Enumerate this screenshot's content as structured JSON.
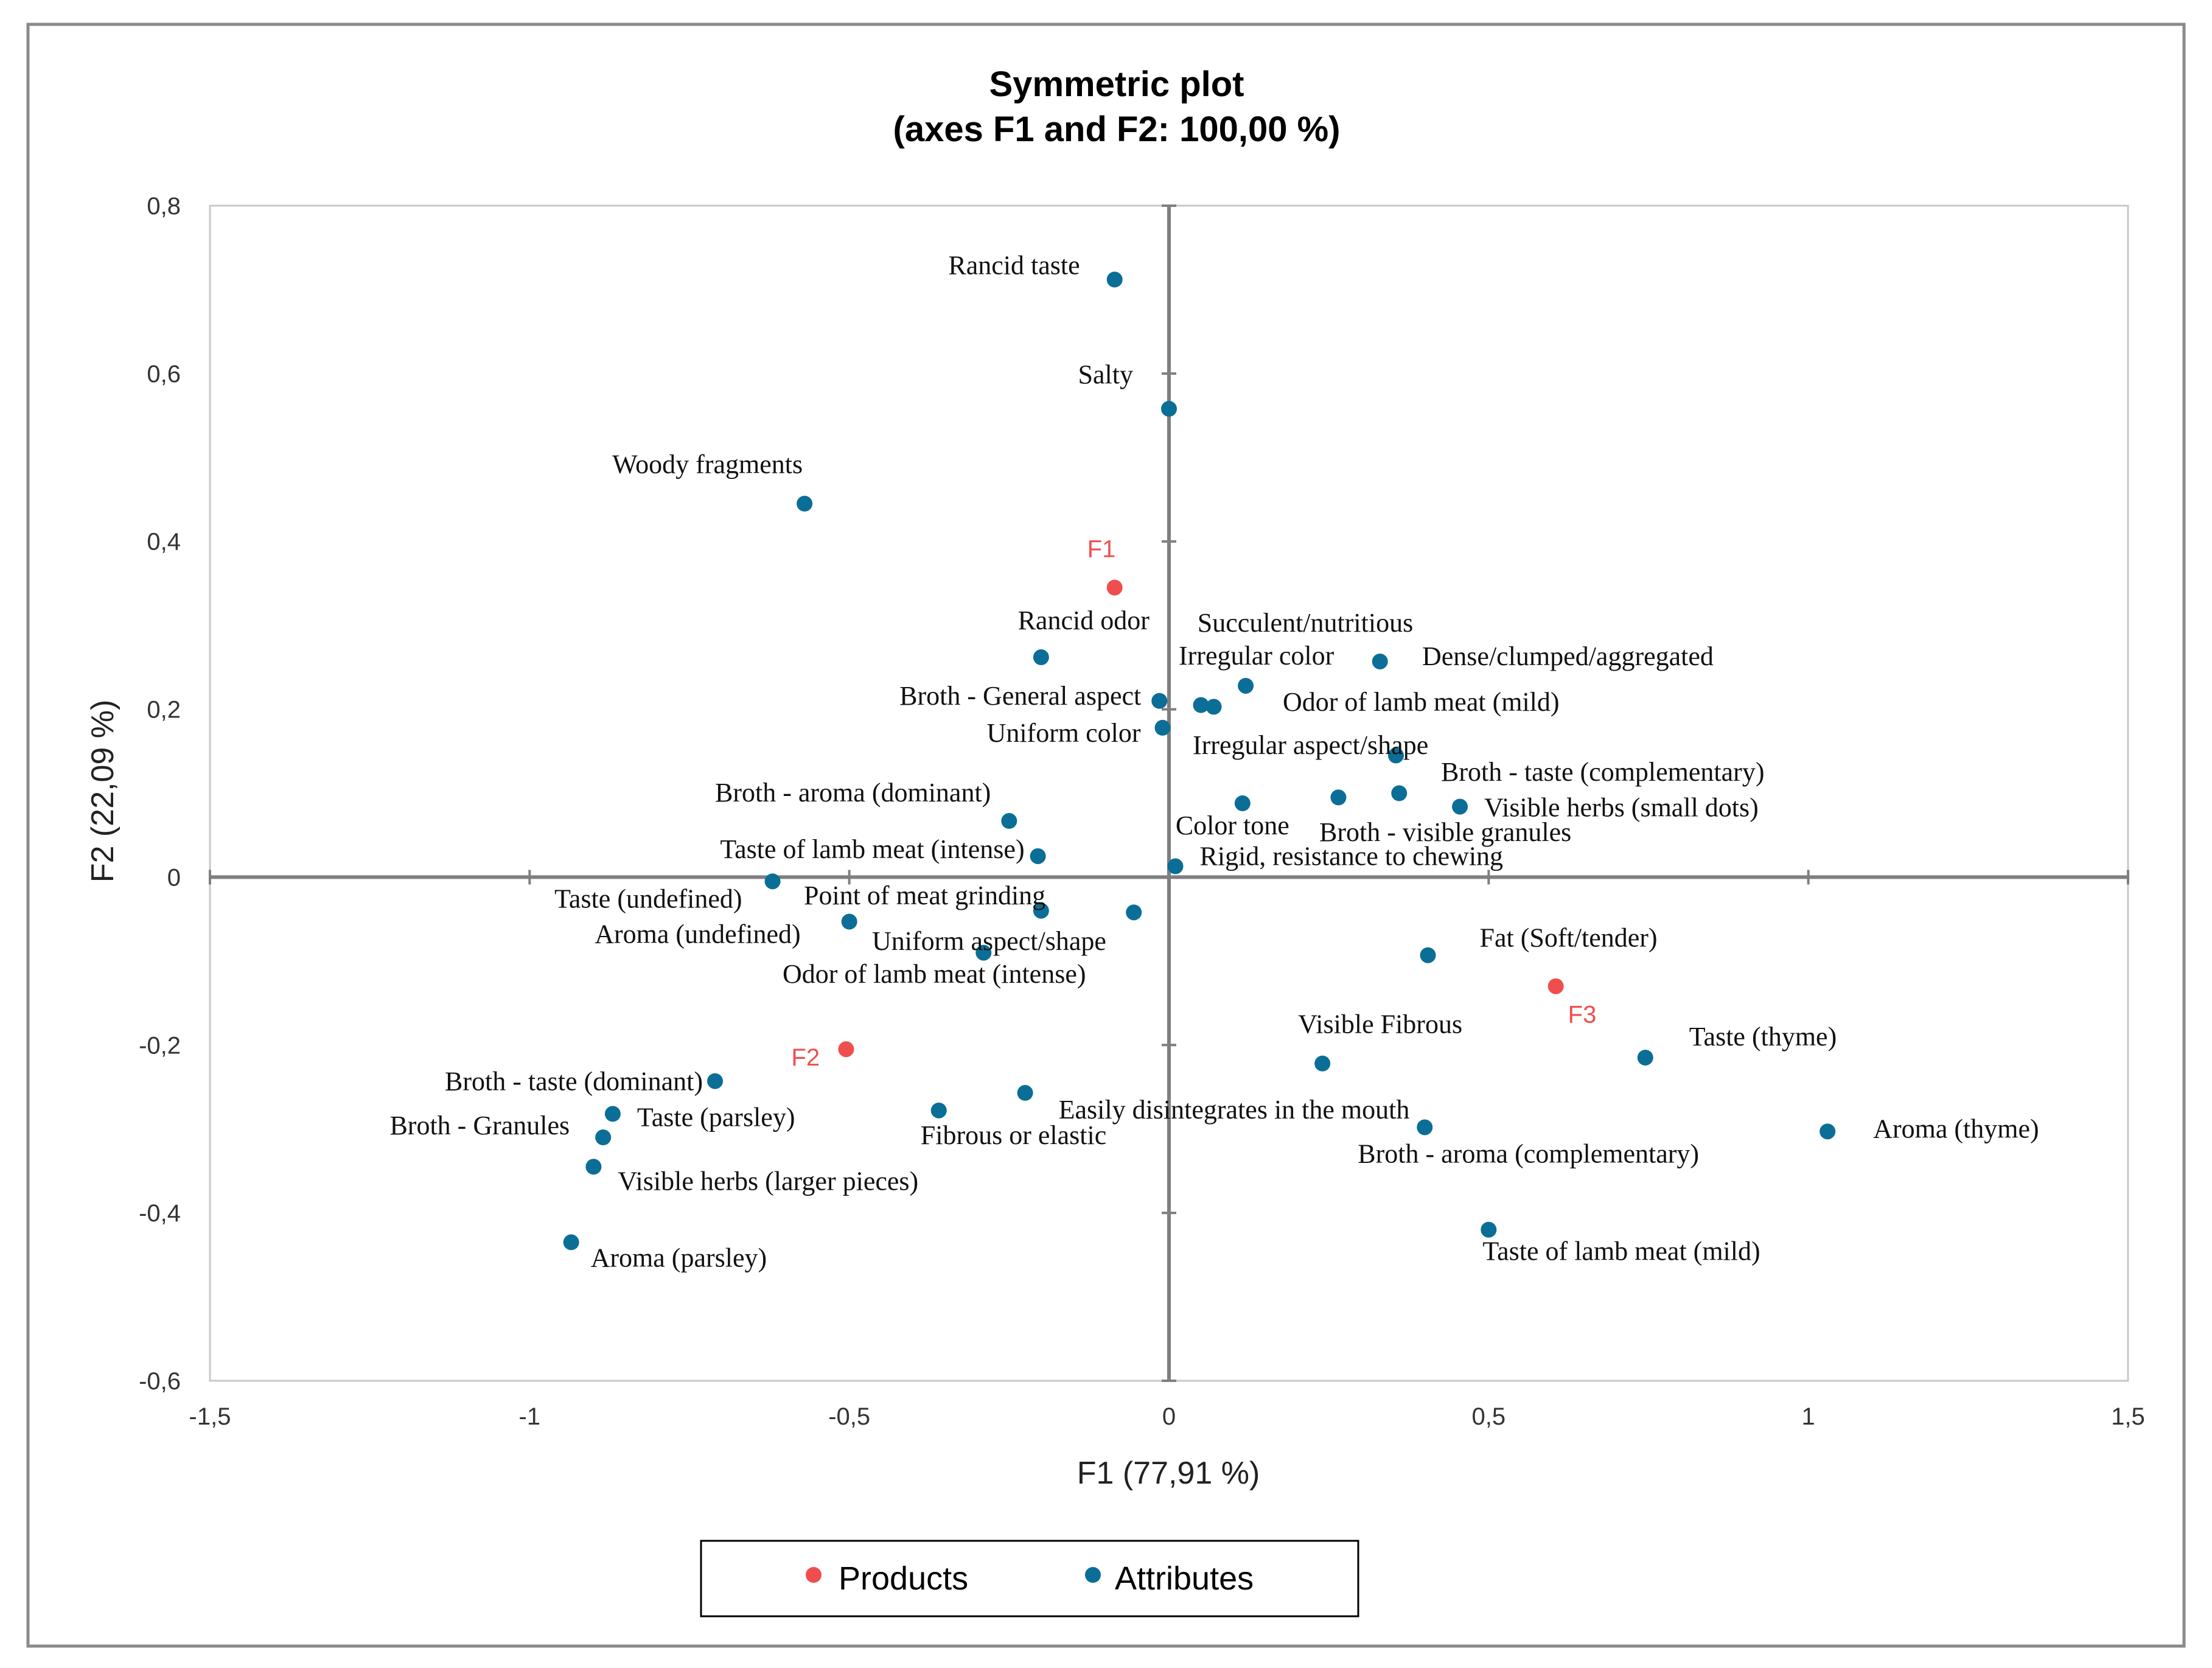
{
  "colors": {
    "products": "#f04e4e",
    "attributes": "#0b6e96",
    "axis": "#7f7f7f",
    "frame": "#8a8a8a"
  },
  "chart_data": {
    "type": "scatter",
    "title": "Symmetric plot",
    "subtitle": "(axes F1 and F2: 100,00 %)",
    "xlabel": "F1 (77,91 %)",
    "ylabel": "F2 (22,09 %)",
    "xlim": [
      -1.5,
      1.5
    ],
    "ylim": [
      -0.6,
      0.8
    ],
    "xticks": [
      -1.5,
      -1,
      -0.5,
      0,
      0.5,
      1,
      1.5
    ],
    "yticks": [
      -0.6,
      -0.4,
      -0.2,
      0,
      0.2,
      0.4,
      0.6,
      0.8
    ],
    "xtick_labels": [
      "-1,5",
      "-1",
      "-0,5",
      "0",
      "0,5",
      "1",
      "1,5"
    ],
    "ytick_labels": [
      "-0,6",
      "-0,4",
      "-0,2",
      "0",
      "0,2",
      "0,4",
      "0,6",
      "0,8"
    ],
    "legend_position": "bottom",
    "legend": [
      {
        "name": "Products",
        "color": "#f04e4e"
      },
      {
        "name": "Attributes",
        "color": "#0b6e96"
      }
    ],
    "series": [
      {
        "name": "Products",
        "color": "#f04e4e",
        "points": [
          {
            "label": "F1",
            "x": -0.085,
            "y": 0.345
          },
          {
            "label": "F2",
            "x": -0.505,
            "y": -0.205
          },
          {
            "label": "F3",
            "x": 0.605,
            "y": -0.13
          }
        ]
      },
      {
        "name": "Attributes",
        "color": "#0b6e96",
        "points": [
          {
            "label": "Rancid taste",
            "x": -0.085,
            "y": 0.712
          },
          {
            "label": "Salty",
            "x": 0.0,
            "y": 0.558
          },
          {
            "label": "Woody fragments",
            "x": -0.57,
            "y": 0.445
          },
          {
            "label": "Rancid odor",
            "x": -0.2,
            "y": 0.262
          },
          {
            "label": "Succulent/nutritious",
            "x": 0.33,
            "y": 0.257
          },
          {
            "label": "Irregular color",
            "x": 0.12,
            "y": 0.228
          },
          {
            "label": "Dense/clumped/aggregated",
            "x": 0.07,
            "y": 0.203
          },
          {
            "label": "Odor of lamb meat (mild)",
            "x": 0.05,
            "y": 0.205
          },
          {
            "label": "Broth - General aspect",
            "x": -0.015,
            "y": 0.21
          },
          {
            "label": "Uniform color",
            "x": -0.01,
            "y": 0.178
          },
          {
            "label": "Irregular aspect/shape",
            "x": 0.355,
            "y": 0.145
          },
          {
            "label": "Broth - taste (complementary)",
            "x": 0.36,
            "y": 0.1
          },
          {
            "label": "Visible herbs (small dots)",
            "x": 0.455,
            "y": 0.084
          },
          {
            "label": "Broth - visible granules",
            "x": 0.265,
            "y": 0.095
          },
          {
            "label": "Color tone",
            "x": 0.115,
            "y": 0.088
          },
          {
            "label": "Rigid, resistance to chewing",
            "x": 0.01,
            "y": 0.013
          },
          {
            "label": "Broth - aroma (dominant)",
            "x": -0.25,
            "y": 0.067
          },
          {
            "label": "Taste of lamb meat (intense)",
            "x": -0.205,
            "y": 0.025
          },
          {
            "label": "Taste (undefined)",
            "x": -0.62,
            "y": -0.005
          },
          {
            "label": "Point of meat grinding",
            "x": -0.2,
            "y": -0.04
          },
          {
            "label": "Uniform aspect/shape",
            "x": -0.055,
            "y": -0.042
          },
          {
            "label": "Aroma (undefined)",
            "x": -0.5,
            "y": -0.053
          },
          {
            "label": "Odor of lamb meat (intense)",
            "x": -0.29,
            "y": -0.09
          },
          {
            "label": "Fat (Soft/tender)",
            "x": 0.405,
            "y": -0.093
          },
          {
            "label": "Visible Fibrous",
            "x": 0.24,
            "y": -0.222
          },
          {
            "label": "Taste (thyme)",
            "x": 0.745,
            "y": -0.215
          },
          {
            "label": "Aroma (thyme)",
            "x": 1.03,
            "y": -0.303
          },
          {
            "label": "Broth - aroma (complementary)",
            "x": 0.4,
            "y": -0.298
          },
          {
            "label": "Taste of lamb meat (mild)",
            "x": 0.5,
            "y": -0.42
          },
          {
            "label": "Easily disintegrates in the mouth",
            "x": -0.225,
            "y": -0.257
          },
          {
            "label": "Fibrous or elastic",
            "x": -0.36,
            "y": -0.278
          },
          {
            "label": "Broth - taste (dominant)",
            "x": -0.71,
            "y": -0.243
          },
          {
            "label": "Taste (parsley)",
            "x": -0.87,
            "y": -0.282
          },
          {
            "label": "Broth - Granules",
            "x": -0.885,
            "y": -0.31
          },
          {
            "label": "Visible herbs (larger pieces)",
            "x": -0.9,
            "y": -0.345
          },
          {
            "label": "Aroma (parsley)",
            "x": -0.935,
            "y": -0.435
          }
        ]
      }
    ]
  }
}
